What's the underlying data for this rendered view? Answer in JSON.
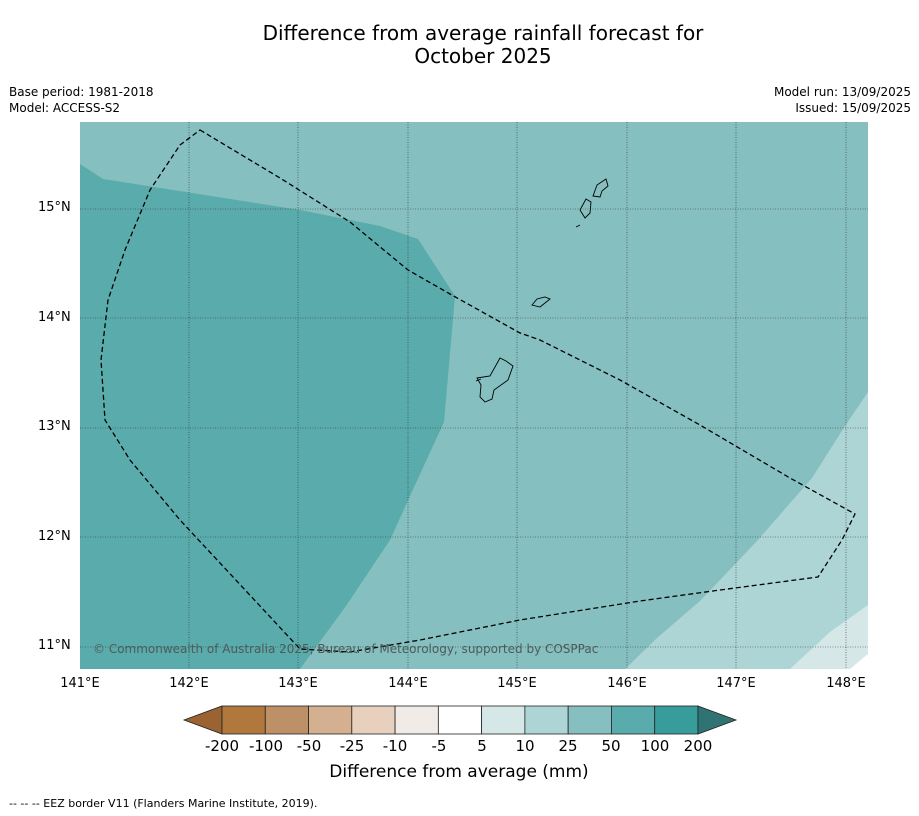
{
  "title_line1": "Difference from average rainfall forecast for",
  "title_line2": "October 2025",
  "meta_left": {
    "base_period": "Base period: 1981-2018",
    "model": "Model: ACCESS-S2"
  },
  "meta_right": {
    "model_run": "Model run: 13/09/2025",
    "issued": "Issued: 15/09/2025"
  },
  "map": {
    "lon_labels": [
      "141°E",
      "142°E",
      "143°E",
      "144°E",
      "145°E",
      "146°E",
      "147°E",
      "148°E"
    ],
    "lat_labels": [
      "15°N",
      "14°N",
      "13°N",
      "12°N",
      "11°N"
    ],
    "copyright": "© Commonwealth of Australia 2025, Bureau of Meteorology, supported by COSPPac"
  },
  "colorbar": {
    "labels": [
      "-200",
      "-100",
      "-50",
      "-25",
      "-10",
      "-5",
      "5",
      "10",
      "25",
      "50",
      "100",
      "200"
    ],
    "colors": [
      "#9a6331",
      "#b0783d",
      "#be9068",
      "#d4b091",
      "#e8d0be",
      "#f0ebe7",
      "#ffffff",
      "#d5e8e7",
      "#aed5d5",
      "#86bfbf",
      "#5aabab",
      "#379c9a",
      "#2f7472"
    ],
    "title": "Difference from average (mm)"
  },
  "footer": "--  --  -- EEZ border V11 (Flanders Marine Institute, 2019)."
}
